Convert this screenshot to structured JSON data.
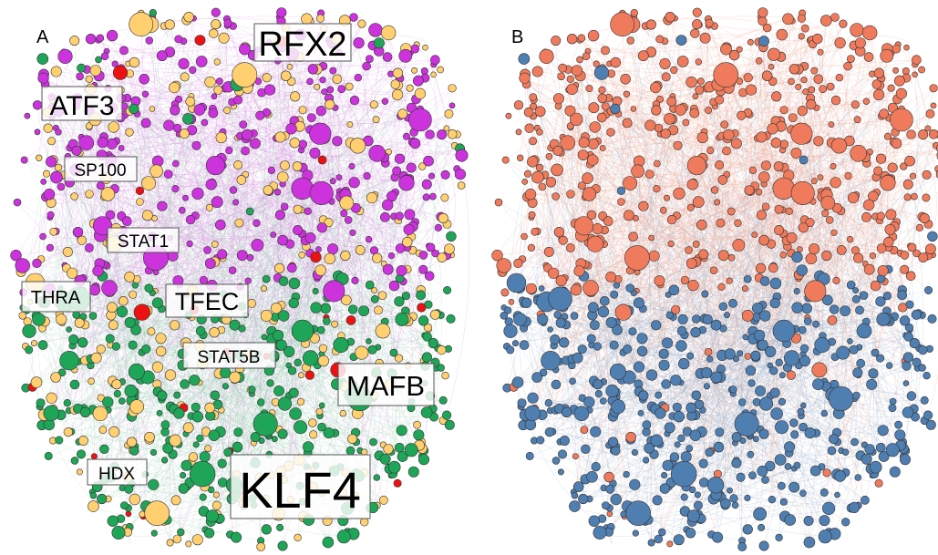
{
  "panels": [
    {
      "letter": "A",
      "coloring": "module",
      "node_colors": [
        "#cc33dd",
        "#1ea557",
        "#ffcf70",
        "#ee1111"
      ],
      "edge_colors": [
        "#d68be0",
        "#8fd1a8"
      ]
    },
    {
      "letter": "B",
      "coloring": "two-group",
      "node_colors": [
        "#ef7b5c",
        "#4f7eb0"
      ],
      "edge_colors": [
        "#f0a08a",
        "#8eaccc"
      ]
    }
  ],
  "gene_labels": [
    "RFX2",
    "ATF3",
    "SP100",
    "STAT1",
    "THRA",
    "TFEC",
    "STAT5B",
    "MAFB",
    "HDX",
    "KLF4"
  ]
}
